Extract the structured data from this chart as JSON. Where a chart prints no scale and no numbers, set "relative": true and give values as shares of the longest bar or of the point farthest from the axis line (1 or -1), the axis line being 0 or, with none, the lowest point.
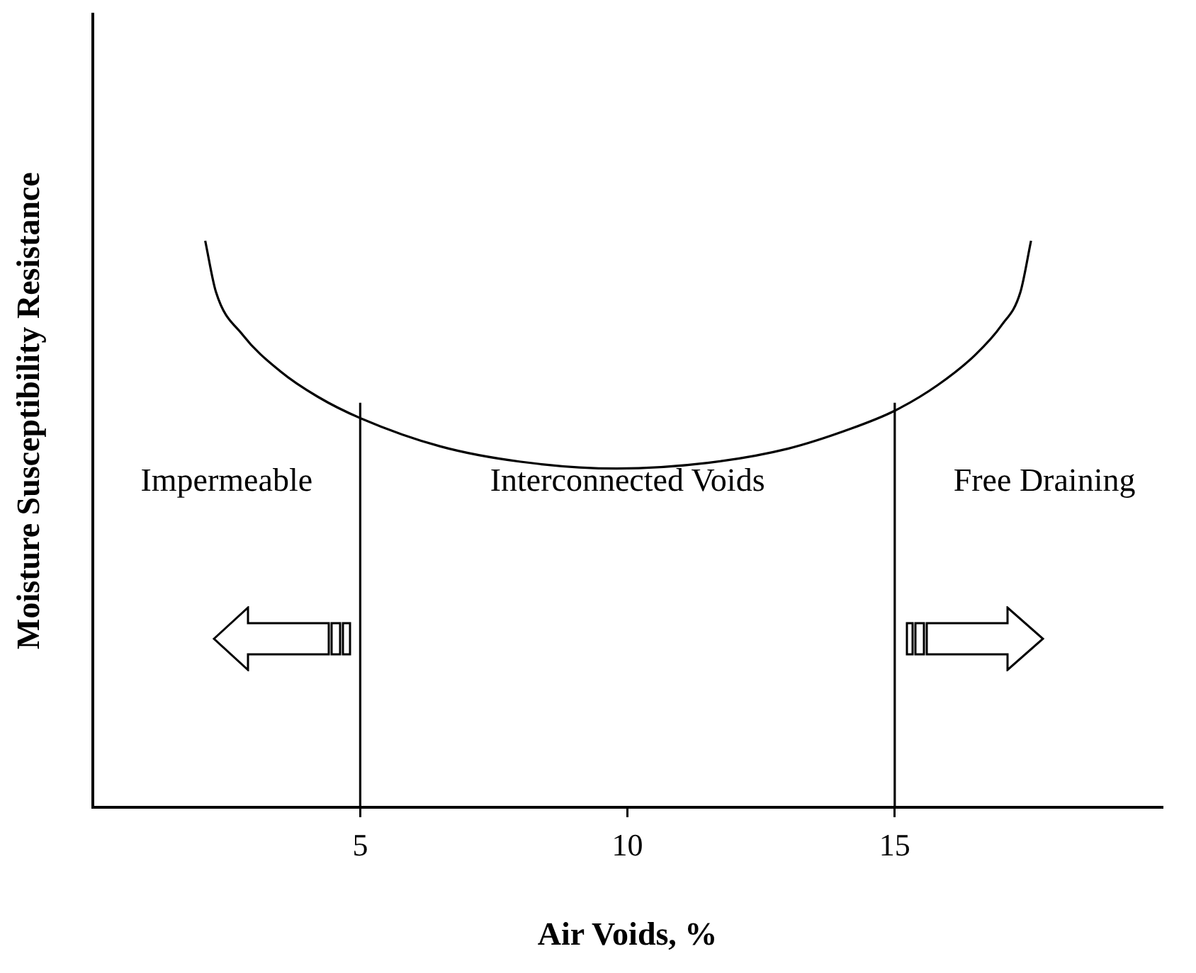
{
  "chart_data": {
    "type": "line",
    "xlabel": "Air Voids, %",
    "ylabel": "Moisture Susceptibility Resistance",
    "xlim": [
      0,
      20
    ],
    "xticks": [
      5,
      10,
      15
    ],
    "relative": true,
    "grid": false,
    "legend": false,
    "marker": "none",
    "line_style": "solid",
    "series": [
      {
        "color": "#000000",
        "x": [
          2.1,
          2.3,
          2.8,
          3.5,
          4.2,
          5,
          6.5,
          8,
          9.8,
          11.5,
          13,
          14.2,
          15,
          15.8,
          16.5,
          17,
          17.35,
          17.55
        ],
        "values": [
          1,
          0.91,
          0.834,
          0.77,
          0.725,
          0.687,
          0.637,
          0.61,
          0.598,
          0.608,
          0.633,
          0.669,
          0.7,
          0.745,
          0.798,
          0.851,
          0.909,
          1
        ]
      }
    ],
    "ref_lines": [
      {
        "axis": "x",
        "value": 5,
        "color": "#000000"
      },
      {
        "axis": "x",
        "value": 15,
        "color": "#000000"
      }
    ],
    "annotations": [
      "Impermeable",
      "Interconnected Voids",
      "Free Draining"
    ]
  }
}
